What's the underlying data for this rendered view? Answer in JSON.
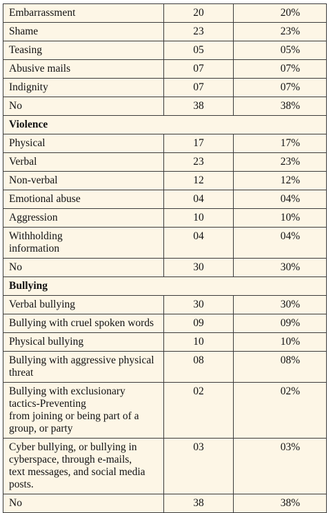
{
  "table": {
    "groups": [
      {
        "heading": "",
        "rows": [
          {
            "label": "Embarrassment",
            "count": "20",
            "percent": "20%"
          },
          {
            "label": "Shame",
            "count": "23",
            "percent": "23%"
          },
          {
            "label": "Teasing",
            "count": "05",
            "percent": "05%"
          },
          {
            "label": "Abusive mails",
            "count": "07",
            "percent": "07%"
          },
          {
            "label": "Indignity",
            "count": "07",
            "percent": "07%"
          },
          {
            "label": "No",
            "count": "38",
            "percent": "38%"
          }
        ]
      },
      {
        "heading": "Violence",
        "rows": [
          {
            "label": "Physical",
            "count": "17",
            "percent": "17%"
          },
          {
            "label": "Verbal",
            "count": "23",
            "percent": "23%"
          },
          {
            "label": "Non-verbal",
            "count": "12",
            "percent": "12%"
          },
          {
            "label": "Emotional abuse",
            "count": "04",
            "percent": "04%"
          },
          {
            "label": "Aggression",
            "count": "10",
            "percent": "10%"
          },
          {
            "label": "Withholding\ninformation",
            "count": "04",
            "percent": "04%"
          },
          {
            "label": "No",
            "count": "30",
            "percent": "30%"
          }
        ]
      },
      {
        "heading": "Bullying",
        "rows": [
          {
            "label": "Verbal bullying",
            "count": "30",
            "percent": "30%"
          },
          {
            "label": "Bullying with cruel spoken words",
            "count": "09",
            "percent": "09%"
          },
          {
            "label": "Physical bullying",
            "count": "10",
            "percent": "10%"
          },
          {
            "label": "Bullying with aggressive physical\nthreat",
            "count": "08",
            "percent": "08%"
          },
          {
            "label": "Bullying with exclusionary\ntactics-Preventing\nfrom joining or being part of a\ngroup, or party",
            "count": "02",
            "percent": "02%"
          },
          {
            "label": "Cyber bullying, or bullying in\ncyberspace, through e-mails,\ntext messages, and social media\nposts.",
            "count": "03",
            "percent": "03%"
          },
          {
            "label": "No",
            "count": "38",
            "percent": "38%"
          }
        ]
      }
    ]
  }
}
